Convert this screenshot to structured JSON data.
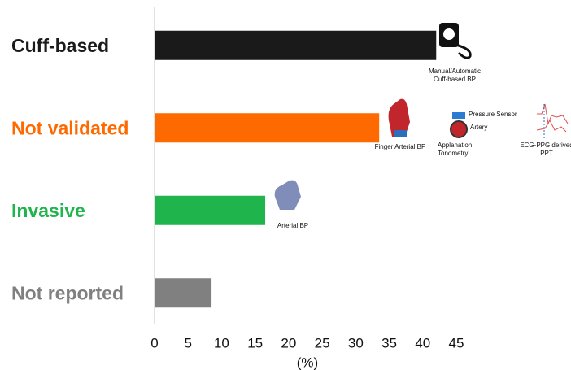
{
  "chart_data": {
    "type": "barh",
    "categories": [
      "Cuff-based",
      "Not validated",
      "Invasive",
      "Not reported"
    ],
    "values": [
      42,
      33.5,
      16.5,
      8.5
    ],
    "colors": [
      "#1a1a1a",
      "#ff6a00",
      "#1fb44c",
      "#808080"
    ],
    "xlim": [
      0,
      45
    ],
    "xticks": [
      0,
      5,
      10,
      15,
      20,
      25,
      30,
      35,
      40,
      45
    ],
    "x_label": "(%)",
    "annotations": [
      "Manual/Automatic Cuff-based BP",
      "Finger Arterial BP",
      "Pressure Sensor",
      "Artery",
      "Applanation Tonometry",
      "ECG-PPG derived PPT",
      "Arterial BP"
    ]
  }
}
